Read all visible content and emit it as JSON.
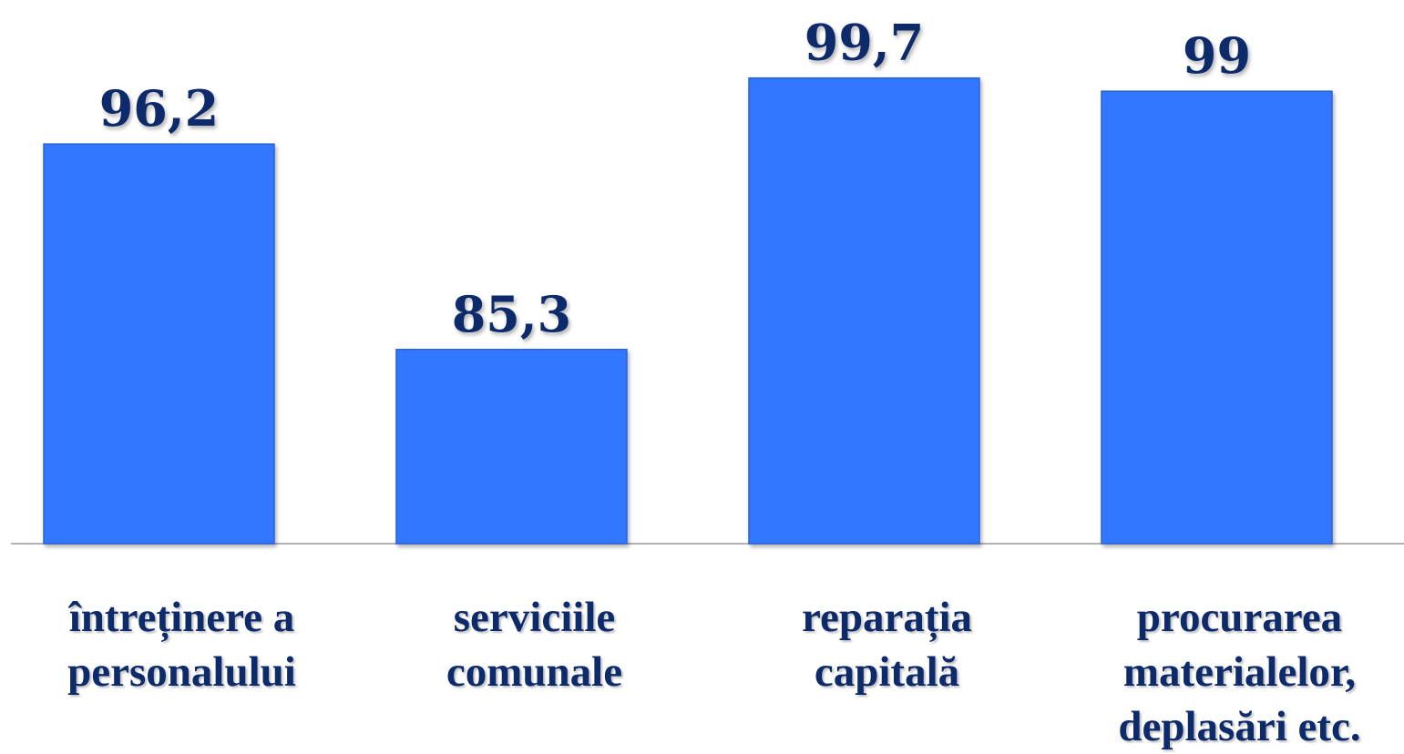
{
  "chart_data": {
    "type": "bar",
    "categories": [
      "întreținere a\npersonalului",
      "serviciile\ncomunale",
      "reparația\ncapitală",
      "procurarea\nmaterialelor,\ndeplasări etc."
    ],
    "values": [
      96.2,
      85.3,
      99.7,
      99
    ],
    "value_labels": [
      "96,2",
      "85,3",
      "99,7",
      "99"
    ],
    "color": "#3377ff",
    "ylim": [
      75,
      100
    ]
  }
}
